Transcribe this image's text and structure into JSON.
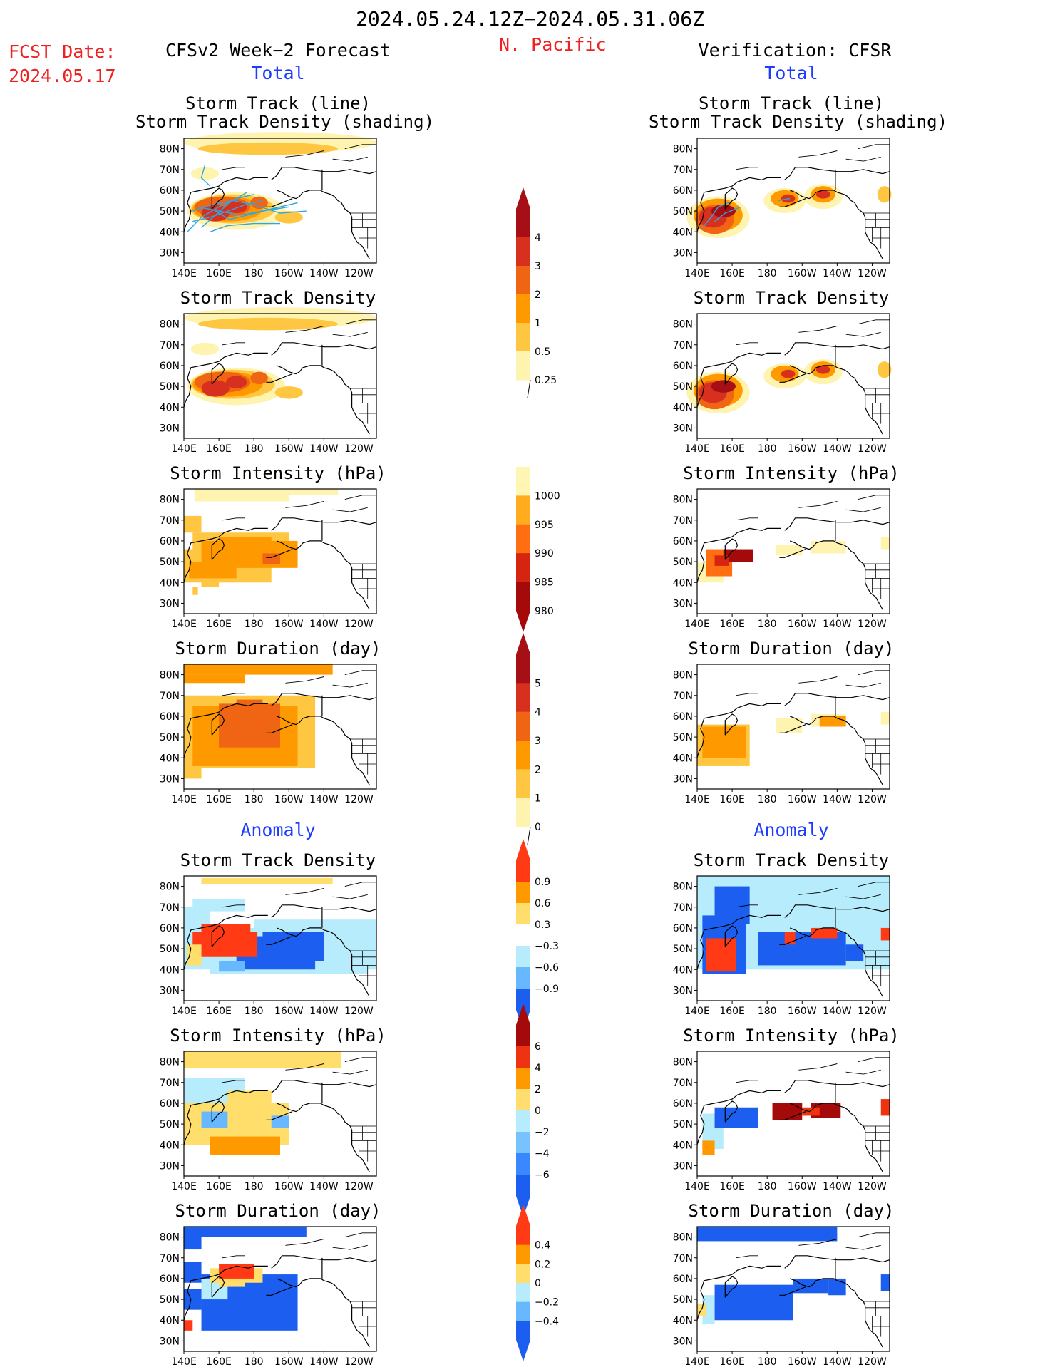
{
  "header": {
    "period": "2024.05.24.12Z−2024.05.31.06Z",
    "fcst_label": "FCST Date:",
    "fcst_date": "2024.05.17",
    "region": "N. Pacific",
    "left_title": "CFSv2 Week−2 Forecast",
    "right_title": "Verification: CFSR"
  },
  "sections": {
    "total": "Total",
    "anomaly": "Anomaly"
  },
  "panel_titles": {
    "track_line_1": "Storm Track (line)",
    "track_line_2": "Storm Track Density (shading)",
    "density": "Storm Track Density",
    "intensity": "Storm Intensity (hPa)",
    "duration": "Storm Duration (day)"
  },
  "axes": {
    "lat_ticks": [
      "80N",
      "70N",
      "60N",
      "50N",
      "40N",
      "30N"
    ],
    "lon_ticks": [
      "140E",
      "160E",
      "180",
      "160W",
      "140W",
      "120W"
    ]
  },
  "colorbars": [
    {
      "id": "total_density",
      "labels": [
        "4",
        "3",
        "2",
        "1",
        "0.5",
        "0.25"
      ],
      "colors": [
        "#a50f15",
        "#d7301f",
        "#ef6513",
        "#ff9900",
        "#ffc641",
        "#fff3b0"
      ]
    },
    {
      "id": "total_intensity",
      "labels": [
        "1000",
        "995",
        "990",
        "985",
        "980"
      ],
      "colors": [
        "#fff6b3",
        "#ffad1f",
        "#ff6f11",
        "#d5240f",
        "#a40a0a"
      ]
    },
    {
      "id": "total_duration",
      "labels": [
        "5",
        "4",
        "3",
        "2",
        "1",
        "0"
      ],
      "colors": [
        "#a50f15",
        "#d7301f",
        "#ef6513",
        "#ff9900",
        "#ffc641",
        "#fff3b0"
      ]
    },
    {
      "id": "anom_density",
      "labels": [
        "0.9",
        "0.6",
        "0.3",
        "−0.3",
        "−0.6",
        "−0.9"
      ],
      "colors": [
        "#ff3a14",
        "#ff9900",
        "#ffde6b",
        "#ffffff",
        "#b6ecfb",
        "#68b8ff",
        "#1b5ef0"
      ]
    },
    {
      "id": "anom_intensity",
      "labels": [
        "6",
        "4",
        "2",
        "0",
        "−2",
        "−4",
        "−6"
      ],
      "colors": [
        "#a40a0a",
        "#ee3311",
        "#ff9900",
        "#ffdd6e",
        "#b6ecfb",
        "#78c3ff",
        "#3a88ff",
        "#1b5ef0"
      ]
    },
    {
      "id": "anom_duration",
      "labels": [
        "0.4",
        "0.2",
        "0",
        "−0.2",
        "−0.4"
      ],
      "colors": [
        "#ff3a14",
        "#ff9900",
        "#ffde6b",
        "#b6ecfb",
        "#68b8ff",
        "#1b5ef0"
      ]
    }
  ],
  "chart_data": {
    "type": "heatmap",
    "title": "2024.05.24.12Z−2024.05.31.06Z",
    "region": "N. Pacific",
    "lon_range": [
      "140E",
      "120W"
    ],
    "lat_range": [
      "25N",
      "85N"
    ],
    "columns": [
      "CFSv2 Week−2 Forecast",
      "Verification: CFSR"
    ],
    "note_fields": [
      "Storm Track Density",
      "Storm Intensity (hPa)",
      "Storm Duration (day)"
    ]
  }
}
